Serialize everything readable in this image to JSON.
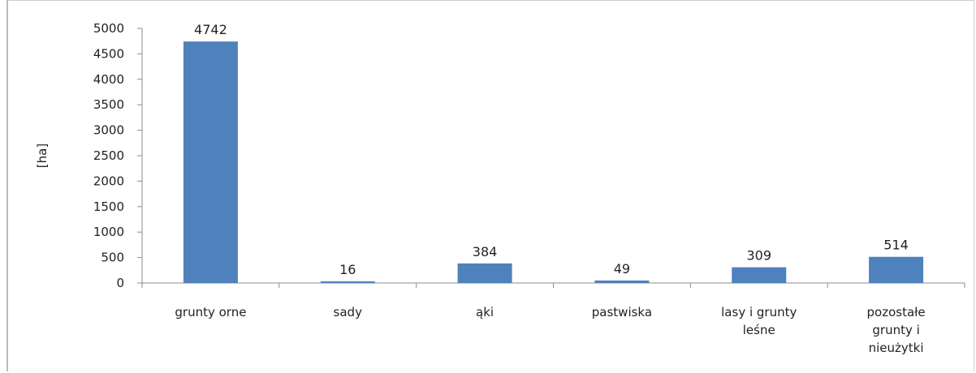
{
  "chart_data": {
    "type": "bar",
    "categories": [
      [
        "grunty orne"
      ],
      [
        "sady"
      ],
      [
        "ąki"
      ],
      [
        "pastwiska"
      ],
      [
        "lasy i grunty",
        "leśne"
      ],
      [
        "pozostałe",
        "grunty i",
        "nieużytki"
      ]
    ],
    "values": [
      4742,
      16,
      384,
      49,
      309,
      514
    ],
    "data_labels": [
      "4742",
      "16",
      "384",
      "49",
      "309",
      "514"
    ],
    "ylabel": "[ha]",
    "ylim": [
      0,
      5000
    ],
    "yticks": [
      0,
      500,
      1000,
      1500,
      2000,
      2500,
      3000,
      3500,
      4000,
      4500,
      5000
    ],
    "grid": false,
    "legend": "none",
    "bar_color": "#4f81bd",
    "axis_color": "#8c8c8c"
  }
}
